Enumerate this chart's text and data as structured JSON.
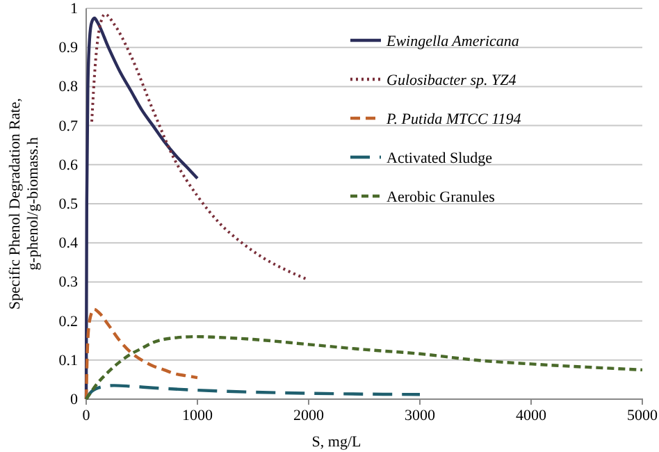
{
  "chart_data": {
    "type": "line",
    "xlabel": "S, mg/L",
    "ylabel": "Specific Phenol Degradation Rate, g-phenol/g-biomass.h",
    "xlim": [
      0,
      5000
    ],
    "xticks": [
      0,
      1000,
      2000,
      3000,
      4000,
      5000
    ],
    "ylim": [
      0,
      1
    ],
    "yticks": [
      0,
      0.1,
      0.2,
      0.3,
      0.4,
      0.5,
      0.6,
      0.7,
      0.8,
      0.9,
      1
    ],
    "grid": "y",
    "legend": "top right",
    "marker": "none",
    "series": [
      {
        "name": "Ewingella Americana",
        "color": "#2b2d5a",
        "line_style": "solid",
        "x": [
          0,
          5,
          15,
          30,
          50,
          75,
          100,
          200,
          300,
          400,
          500,
          600,
          700,
          800,
          900,
          1000
        ],
        "values": [
          0,
          0.5,
          0.8,
          0.92,
          0.965,
          0.975,
          0.965,
          0.9,
          0.84,
          0.79,
          0.74,
          0.7,
          0.66,
          0.625,
          0.595,
          0.565
        ]
      },
      {
        "name": "Gulosibacter sp. YZ4",
        "color": "#7a2f3a",
        "line_style": "dotted",
        "x": [
          50,
          80,
          120,
          170,
          250,
          400,
          600,
          800,
          1000,
          1200,
          1400,
          1600,
          1800,
          2000
        ],
        "values": [
          0.71,
          0.85,
          0.95,
          0.985,
          0.96,
          0.88,
          0.74,
          0.61,
          0.52,
          0.45,
          0.4,
          0.36,
          0.33,
          0.305
        ]
      },
      {
        "name": "P. Putida MTCC 1194",
        "color": "#c0622a",
        "line_style": "dashed",
        "x": [
          0,
          10,
          30,
          70,
          120,
          200,
          300,
          400,
          500,
          600,
          700,
          800,
          900,
          1000
        ],
        "values": [
          0,
          0.12,
          0.2,
          0.23,
          0.22,
          0.19,
          0.15,
          0.12,
          0.1,
          0.085,
          0.075,
          0.065,
          0.06,
          0.055
        ]
      },
      {
        "name": "Activated Sludge",
        "color": "#1f5f6e",
        "line_style": "dashed",
        "x": [
          0,
          50,
          150,
          250,
          400,
          600,
          1000,
          1500,
          2000,
          2500,
          3000
        ],
        "values": [
          0,
          0.02,
          0.032,
          0.035,
          0.033,
          0.029,
          0.023,
          0.018,
          0.015,
          0.013,
          0.012
        ]
      },
      {
        "name": "Aerobic Granules",
        "color": "#4a6a2a",
        "line_style": "dashed",
        "x": [
          0,
          100,
          200,
          300,
          400,
          500,
          600,
          800,
          1000,
          1200,
          1500,
          2000,
          2500,
          3000,
          3500,
          4000,
          4500,
          5000
        ],
        "values": [
          0,
          0.04,
          0.07,
          0.095,
          0.115,
          0.13,
          0.145,
          0.157,
          0.16,
          0.158,
          0.153,
          0.14,
          0.127,
          0.116,
          0.1,
          0.09,
          0.082,
          0.075
        ]
      }
    ]
  }
}
